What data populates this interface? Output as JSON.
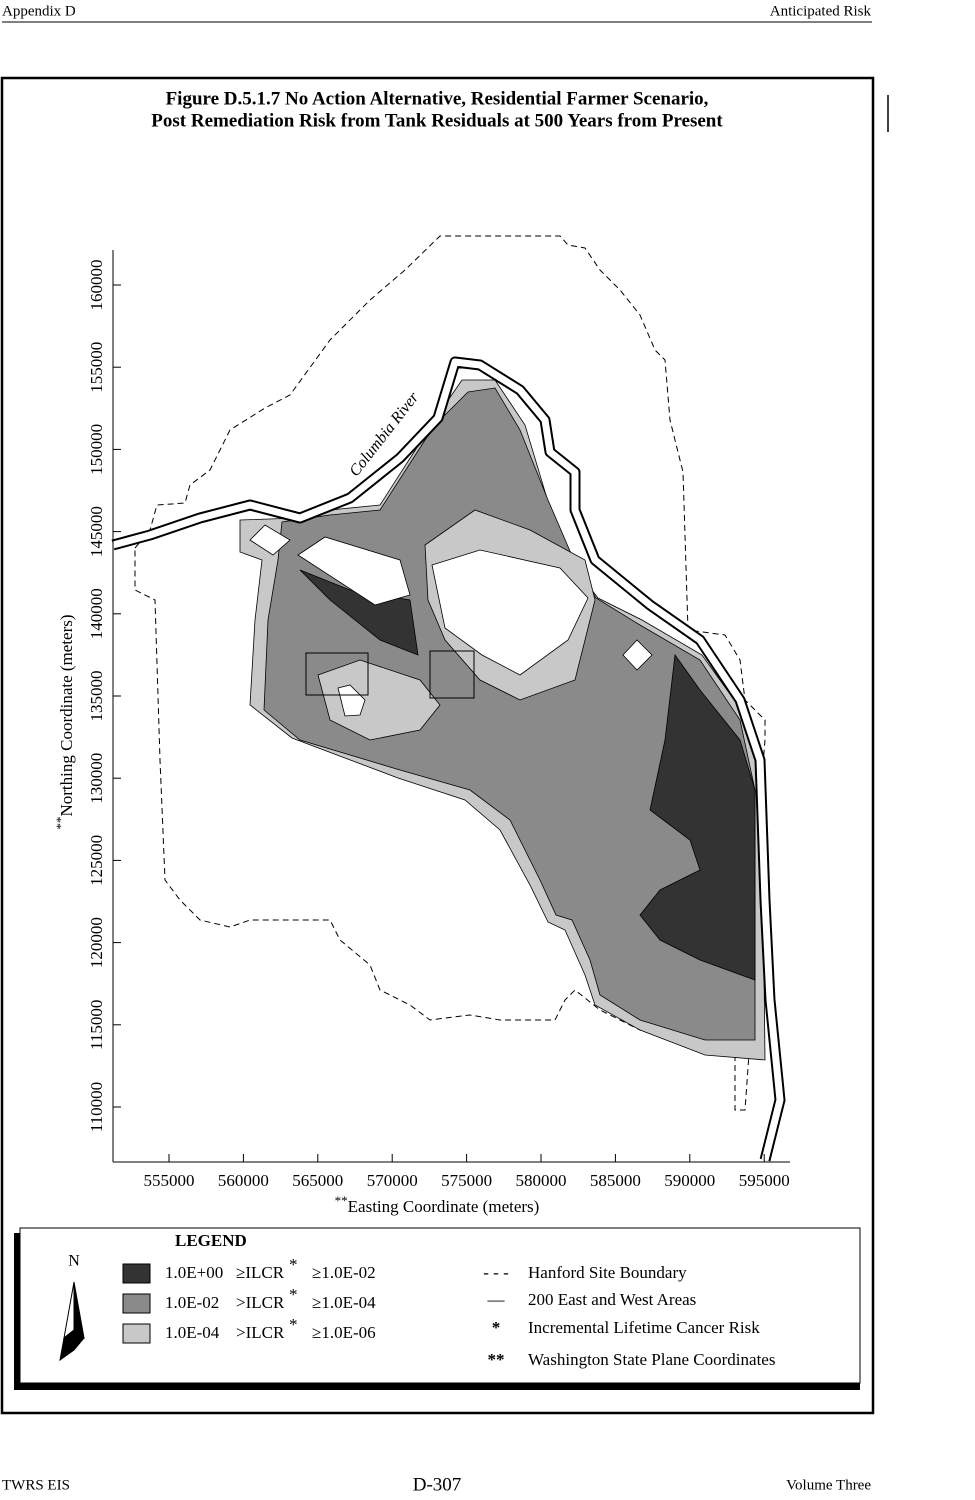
{
  "header": {
    "left": "Appendix D",
    "right": "Anticipated Risk"
  },
  "figure": {
    "title_line1": "Figure D.5.1.7  No Action Alternative, Residential Farmer Scenario,",
    "title_line2": "Post Remediation Risk from Tank Residuals at 500 Years from Present",
    "river_label": "Columbia River",
    "x_axis": {
      "marker": "**",
      "label": "Easting Coordinate (meters)",
      "ticks": [
        "555000",
        "560000",
        "565000",
        "570000",
        "575000",
        "580000",
        "585000",
        "590000",
        "595000"
      ]
    },
    "y_axis": {
      "marker": "**",
      "label": "Northing Coordinate (meters)",
      "ticks": [
        "110000",
        "115000",
        "120000",
        "125000",
        "130000",
        "135000",
        "140000",
        "145000",
        "150000",
        "155000",
        "160000"
      ]
    },
    "legend": {
      "title": "LEGEND",
      "north": "N",
      "zones": [
        {
          "upper": "1.0E+00",
          "op": "≥ILCR",
          "star": "*",
          "lower": "≥1.0E-02"
        },
        {
          "upper": "1.0E-02",
          "op": ">ILCR",
          "star": "*",
          "lower": "≥1.0E-04"
        },
        {
          "upper": "1.0E-04",
          "op": ">ILCR",
          "star": "*",
          "lower": "≥1.0E-06"
        }
      ],
      "lines": [
        {
          "symbol": "- - -",
          "text": "Hanford Site Boundary"
        },
        {
          "symbol": "—",
          "text": "200 East and West Areas"
        },
        {
          "symbol": "*",
          "text": "Incremental Lifetime Cancer Risk"
        },
        {
          "symbol": "**",
          "text": "Washington State Plane Coordinates"
        }
      ]
    }
  },
  "footer": {
    "left": "TWRS EIS",
    "center": "D-307",
    "right": "Volume Three"
  }
}
